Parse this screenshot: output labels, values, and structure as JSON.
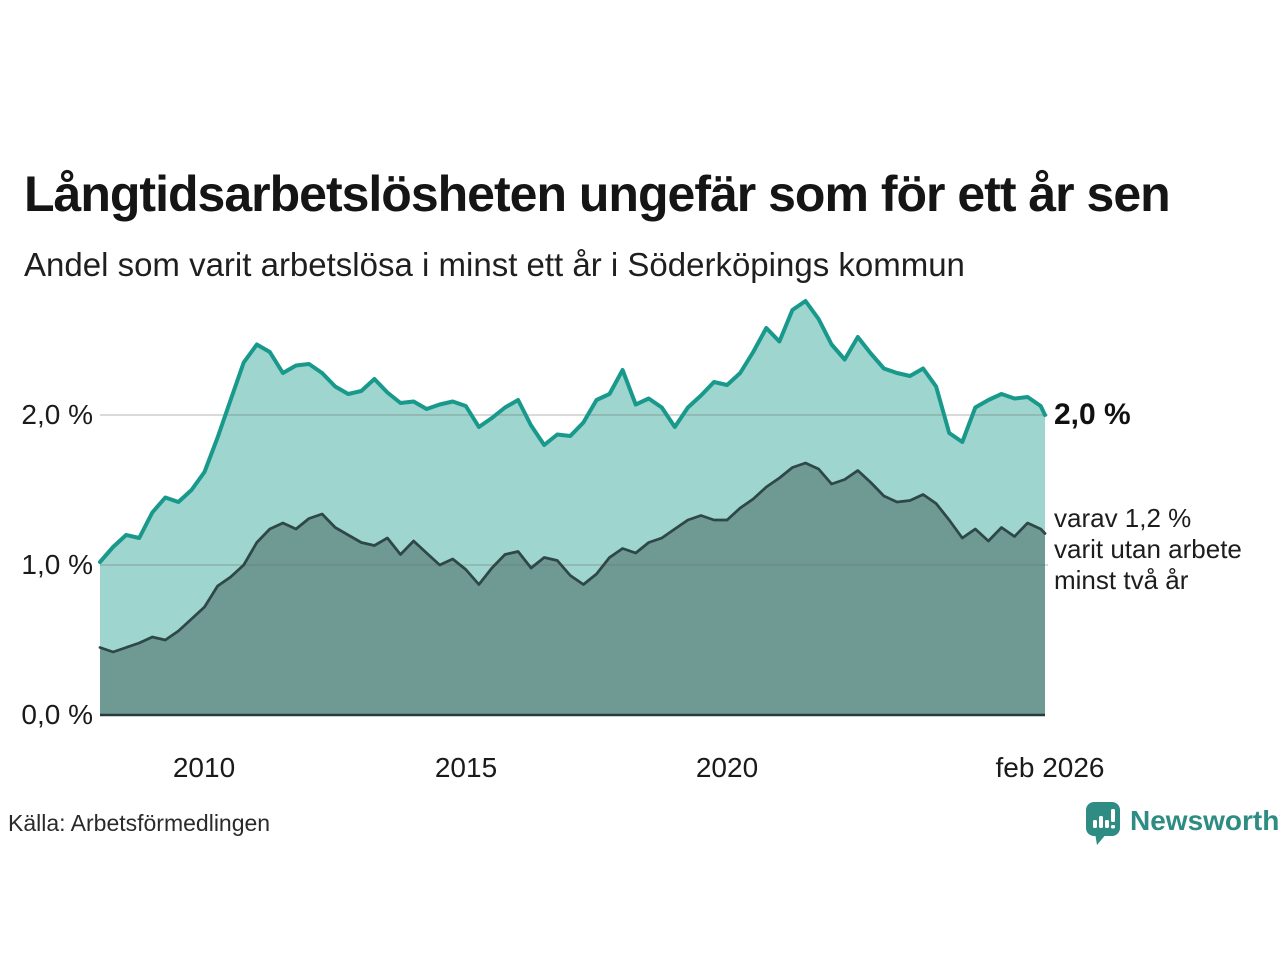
{
  "header": {
    "title": "Långtidsarbetslösheten ungefär som för ett år sen",
    "subtitle": "Andel som varit arbetslösa i minst ett år i Söderköpings kommun"
  },
  "chart_data": {
    "type": "area",
    "title": "Långtidsarbetslösheten ungefär som för ett år sen",
    "subtitle": "Andel som varit arbetslösa i minst ett år i Söderköpings kommun",
    "unit": "%",
    "x_range": [
      2008.0,
      2026.083
    ],
    "ylim": [
      0,
      2.9
    ],
    "grid": "horizontal",
    "legend_position": "right-end-labels",
    "x": [
      2008.0,
      2008.25,
      2008.5,
      2008.75,
      2009.0,
      2009.25,
      2009.5,
      2009.75,
      2010.0,
      2010.25,
      2010.5,
      2010.75,
      2011.0,
      2011.25,
      2011.5,
      2011.75,
      2012.0,
      2012.25,
      2012.5,
      2012.75,
      2013.0,
      2013.25,
      2013.5,
      2013.75,
      2014.0,
      2014.25,
      2014.5,
      2014.75,
      2015.0,
      2015.25,
      2015.5,
      2015.75,
      2016.0,
      2016.25,
      2016.5,
      2016.75,
      2017.0,
      2017.25,
      2017.5,
      2017.75,
      2018.0,
      2018.25,
      2018.5,
      2018.75,
      2019.0,
      2019.25,
      2019.5,
      2019.75,
      2020.0,
      2020.25,
      2020.5,
      2020.75,
      2021.0,
      2021.25,
      2021.5,
      2021.75,
      2022.0,
      2022.25,
      2022.5,
      2022.75,
      2023.0,
      2023.25,
      2023.5,
      2023.75,
      2024.0,
      2024.25,
      2024.5,
      2024.75,
      2025.0,
      2025.25,
      2025.5,
      2025.75,
      2026.0,
      2026.083
    ],
    "series": [
      {
        "name": "Andel arbetslösa minst ett år (totalt)",
        "line_color": "#18998b",
        "fill_color": "#9ed5ce",
        "line_width": 4,
        "values": [
          1.02,
          1.12,
          1.2,
          1.18,
          1.35,
          1.45,
          1.42,
          1.5,
          1.62,
          1.85,
          2.1,
          2.35,
          2.47,
          2.42,
          2.28,
          2.33,
          2.34,
          2.28,
          2.19,
          2.14,
          2.16,
          2.24,
          2.15,
          2.08,
          2.09,
          2.04,
          2.07,
          2.09,
          2.06,
          1.92,
          1.98,
          2.05,
          2.1,
          1.93,
          1.8,
          1.87,
          1.86,
          1.95,
          2.1,
          2.14,
          2.3,
          2.07,
          2.11,
          2.05,
          1.92,
          2.05,
          2.13,
          2.22,
          2.2,
          2.28,
          2.42,
          2.58,
          2.49,
          2.7,
          2.76,
          2.64,
          2.47,
          2.37,
          2.52,
          2.41,
          2.31,
          2.28,
          2.26,
          2.31,
          2.19,
          1.88,
          1.82,
          2.05,
          2.1,
          2.14,
          2.11,
          2.12,
          2.06,
          2.0
        ]
      },
      {
        "name": "Varav utan arbete minst två år",
        "line_color": "#2e4747",
        "fill_color": "#6f9a94",
        "line_width": 2.75,
        "values": [
          0.45,
          0.42,
          0.45,
          0.48,
          0.52,
          0.5,
          0.56,
          0.64,
          0.72,
          0.86,
          0.92,
          1.0,
          1.15,
          1.24,
          1.28,
          1.24,
          1.31,
          1.34,
          1.25,
          1.2,
          1.15,
          1.13,
          1.18,
          1.07,
          1.16,
          1.08,
          1.0,
          1.04,
          0.97,
          0.87,
          0.98,
          1.07,
          1.09,
          0.98,
          1.05,
          1.03,
          0.93,
          0.87,
          0.94,
          1.05,
          1.11,
          1.08,
          1.15,
          1.18,
          1.24,
          1.3,
          1.33,
          1.3,
          1.3,
          1.38,
          1.44,
          1.52,
          1.58,
          1.65,
          1.68,
          1.64,
          1.54,
          1.57,
          1.63,
          1.55,
          1.46,
          1.42,
          1.43,
          1.47,
          1.41,
          1.3,
          1.18,
          1.24,
          1.16,
          1.25,
          1.19,
          1.28,
          1.24,
          1.21
        ]
      }
    ],
    "yticks": [
      {
        "value": 0,
        "label": "0,0 %"
      },
      {
        "value": 1,
        "label": "1,0 %"
      },
      {
        "value": 2,
        "label": "2,0 %"
      }
    ],
    "xticks": [
      {
        "value": 2010,
        "label": "2010"
      },
      {
        "value": 2015,
        "label": "2015"
      },
      {
        "value": 2020,
        "label": "2020"
      },
      {
        "value": 2026.083,
        "label": "feb 2026"
      }
    ],
    "annotations": {
      "series1_end_value": "2,0 %",
      "series2_end_label_lines": [
        "varav 1,2 %",
        "varit utan arbete",
        "minst två år"
      ]
    }
  },
  "footer": {
    "source": "Källa: Arbetsförmedlingen",
    "brand": "Newsworthy"
  },
  "colors": {
    "total_line": "#18998b",
    "total_fill": "#9ed5ce",
    "dark_line": "#2e4747",
    "dark_fill": "#6f9a94",
    "gridline": "rgba(107,107,107,0.25)",
    "baseline": "#273b3b",
    "brand_teal": "#2e8c83"
  }
}
